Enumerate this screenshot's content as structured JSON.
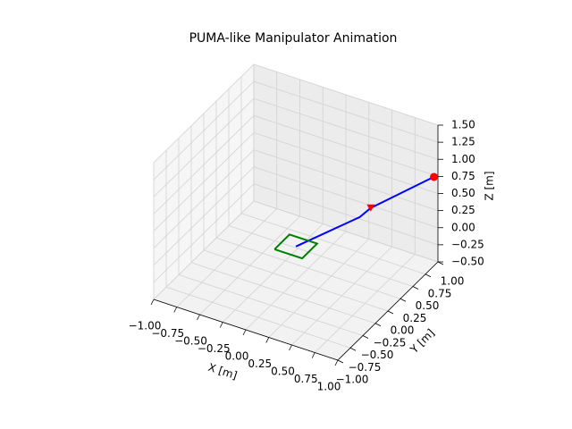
{
  "chart_data": {
    "type": "line3d",
    "title": "PUMA-like Manipulator Animation",
    "xlabel": "X [m]",
    "ylabel": "Y [m]",
    "zlabel": "Z [m]",
    "xlim": [
      -1,
      1
    ],
    "ylim": [
      -1,
      1
    ],
    "zlim": [
      -0.5,
      1.5
    ],
    "xticks": [
      {
        "value": -1,
        "label": "−1.00"
      },
      {
        "value": -0.75,
        "label": "−0.75"
      },
      {
        "value": -0.5,
        "label": "−0.50"
      },
      {
        "value": -0.25,
        "label": "−0.25"
      },
      {
        "value": 0,
        "label": "0.00"
      },
      {
        "value": 0.25,
        "label": "0.25"
      },
      {
        "value": 0.5,
        "label": "0.50"
      },
      {
        "value": 0.75,
        "label": "0.75"
      },
      {
        "value": 1,
        "label": "1.00"
      }
    ],
    "yticks": [
      {
        "value": -1,
        "label": "−1.00"
      },
      {
        "value": -0.75,
        "label": "−0.75"
      },
      {
        "value": -0.5,
        "label": "−0.50"
      },
      {
        "value": -0.25,
        "label": "−0.25"
      },
      {
        "value": 0,
        "label": "0.00"
      },
      {
        "value": 0.25,
        "label": "0.25"
      },
      {
        "value": 0.5,
        "label": "0.50"
      },
      {
        "value": 0.75,
        "label": "0.75"
      },
      {
        "value": 1,
        "label": "1.00"
      }
    ],
    "zticks": [
      {
        "value": -0.5,
        "label": "−0.50"
      },
      {
        "value": -0.25,
        "label": "−0.25"
      },
      {
        "value": 0,
        "label": "0.00"
      },
      {
        "value": 0.25,
        "label": "0.25"
      },
      {
        "value": 0.5,
        "label": "0.50"
      },
      {
        "value": 0.75,
        "label": "0.75"
      },
      {
        "value": 1,
        "label": "1.00"
      },
      {
        "value": 1.25,
        "label": "1.25"
      },
      {
        "value": 1.5,
        "label": "1.50"
      }
    ],
    "grid": true,
    "series": [
      {
        "color": "#0000ff",
        "x": [
          0,
          0.39,
          0.46,
          1.0
        ],
        "y": [
          0,
          0.56,
          0.65,
          0.92
        ],
        "z": [
          0,
          0.2,
          0.3,
          0.8
        ]
      },
      {
        "color": "#008000",
        "x": [
          -0.15,
          0.15,
          0.15,
          -0.15,
          -0.15
        ],
        "y": [
          -0.15,
          -0.15,
          0.15,
          0.15,
          -0.15
        ],
        "z": [
          0,
          0,
          0,
          0,
          0
        ]
      }
    ],
    "markers": [
      {
        "marker": "triangle",
        "color": "#ff0000",
        "x": 0.46,
        "y": 0.65,
        "z": 0.3
      },
      {
        "marker": "circle",
        "color": "#ff0000",
        "x": 1.0,
        "y": 0.92,
        "z": 0.8
      }
    ]
  }
}
